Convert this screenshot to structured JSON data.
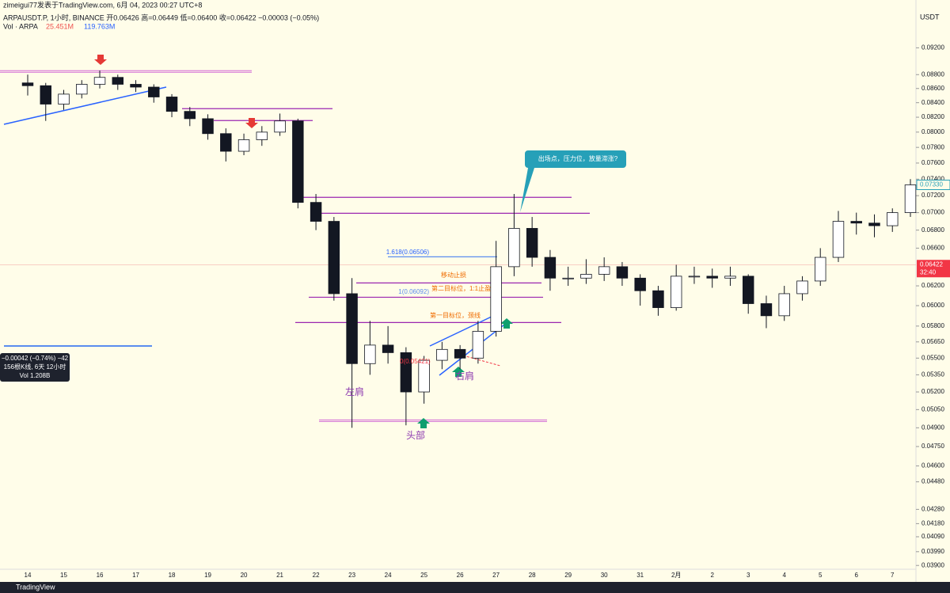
{
  "chart_data": {
    "type": "candlestick",
    "header": {
      "publisher": "zimeigui77发表于TradingView.com, 6月 04, 2023 00:27 UTC+8",
      "symbol_line": "ARPAUSDT.P, 1小时, BINANCE  开0.06426  高=0.06449  低=0.06400  收=0.06422  −0.00003 (−0.05%)",
      "volume_name": "Vol · ARPA",
      "volume_value": "25.451M",
      "volume_ma": "119.763M"
    },
    "axis_unit": "USDT",
    "log_scale": true,
    "grid": false,
    "ylim": [
      0.03795,
      0.09959
    ],
    "yticks": [
      {
        "value": 0.092,
        "label": "0.09200"
      },
      {
        "value": 0.088,
        "label": "0.08800"
      },
      {
        "value": 0.086,
        "label": "0.08600"
      },
      {
        "value": 0.084,
        "label": "0.08400"
      },
      {
        "value": 0.082,
        "label": "0.08200"
      },
      {
        "value": 0.08,
        "label": "0.08000"
      },
      {
        "value": 0.078,
        "label": "0.07800"
      },
      {
        "value": 0.076,
        "label": "0.07600"
      },
      {
        "value": 0.074,
        "label": "0.07400"
      },
      {
        "value": 0.072,
        "label": "0.07200"
      },
      {
        "value": 0.07,
        "label": "0.07000"
      },
      {
        "value": 0.068,
        "label": "0.06800"
      },
      {
        "value": 0.066,
        "label": "0.06600"
      },
      {
        "value": 0.062,
        "label": "0.06200"
      },
      {
        "value": 0.06,
        "label": "0.06000"
      },
      {
        "value": 0.058,
        "label": "0.05800"
      },
      {
        "value": 0.0565,
        "label": "0.05650"
      },
      {
        "value": 0.055,
        "label": "0.05500"
      },
      {
        "value": 0.0535,
        "label": "0.05350"
      },
      {
        "value": 0.052,
        "label": "0.05200"
      },
      {
        "value": 0.0505,
        "label": "0.05050"
      },
      {
        "value": 0.049,
        "label": "0.04900"
      },
      {
        "value": 0.0475,
        "label": "0.04750"
      },
      {
        "value": 0.046,
        "label": "0.04600"
      },
      {
        "value": 0.0448,
        "label": "0.04480"
      },
      {
        "value": 0.0428,
        "label": "0.04280"
      },
      {
        "value": 0.0418,
        "label": "0.04180"
      },
      {
        "value": 0.0409,
        "label": "0.04090"
      },
      {
        "value": 0.0399,
        "label": "0.03990"
      },
      {
        "value": 0.039,
        "label": "0.03900"
      }
    ],
    "categories": [
      "14",
      null,
      "15",
      null,
      "16",
      null,
      "17",
      null,
      "18",
      null,
      "19",
      null,
      "20",
      null,
      "21",
      null,
      "22",
      null,
      "23",
      null,
      "24",
      null,
      "25",
      null,
      "26",
      null,
      "27",
      null,
      "28",
      null,
      "29",
      null,
      "30",
      null,
      "31",
      null,
      "2月",
      null,
      "2",
      null,
      "3",
      null,
      "4",
      null,
      "5",
      null,
      "6",
      null,
      "7",
      null
    ],
    "open": [
      0.0868,
      0.0864,
      0.0838,
      0.0852,
      0.0866,
      0.0876,
      0.0866,
      0.0862,
      0.0848,
      0.0828,
      0.0818,
      0.0798,
      0.0775,
      0.079,
      0.08,
      0.0815,
      0.0712,
      0.069,
      0.0612,
      0.0545,
      0.0562,
      0.0555,
      0.052,
      0.0548,
      0.0558,
      0.055,
      0.0575,
      0.064,
      0.0682,
      0.065,
      0.0628,
      0.0628,
      0.0632,
      0.064,
      0.0628,
      0.0615,
      0.0598,
      0.063,
      0.063,
      0.0628,
      0.063,
      0.0602,
      0.059,
      0.0612,
      0.0625,
      0.065,
      0.069,
      0.0688,
      0.0685,
      0.07
    ],
    "high": [
      0.088,
      0.0868,
      0.0858,
      0.0872,
      0.0886,
      0.088,
      0.0872,
      0.0866,
      0.0852,
      0.0834,
      0.0824,
      0.0805,
      0.0798,
      0.0808,
      0.0825,
      0.0818,
      0.0722,
      0.0695,
      0.0628,
      0.0585,
      0.058,
      0.056,
      0.0552,
      0.0565,
      0.0562,
      0.0585,
      0.0668,
      0.0722,
      0.0695,
      0.0658,
      0.064,
      0.0648,
      0.065,
      0.0645,
      0.0632,
      0.062,
      0.0642,
      0.064,
      0.0638,
      0.064,
      0.0632,
      0.061,
      0.062,
      0.063,
      0.066,
      0.0702,
      0.07,
      0.0698,
      0.0705,
      0.074
    ],
    "low": [
      0.085,
      0.0815,
      0.083,
      0.0846,
      0.086,
      0.0858,
      0.0855,
      0.084,
      0.082,
      0.0808,
      0.079,
      0.0762,
      0.077,
      0.0782,
      0.0795,
      0.0705,
      0.068,
      0.0605,
      0.049,
      0.0535,
      0.0545,
      0.0492,
      0.051,
      0.054,
      0.054,
      0.0545,
      0.057,
      0.063,
      0.064,
      0.0615,
      0.062,
      0.0622,
      0.0625,
      0.062,
      0.06,
      0.059,
      0.0595,
      0.0622,
      0.0618,
      0.062,
      0.0592,
      0.0578,
      0.0585,
      0.0605,
      0.062,
      0.0645,
      0.0675,
      0.0672,
      0.0678,
      0.0695
    ],
    "close": [
      0.0864,
      0.0838,
      0.0852,
      0.0866,
      0.0876,
      0.0866,
      0.0862,
      0.0848,
      0.0828,
      0.0818,
      0.0798,
      0.0775,
      0.079,
      0.08,
      0.0815,
      0.0712,
      0.069,
      0.0612,
      0.0545,
      0.0562,
      0.0555,
      0.052,
      0.0548,
      0.0558,
      0.055,
      0.0575,
      0.064,
      0.0682,
      0.065,
      0.0628,
      0.0628,
      0.0632,
      0.064,
      0.0628,
      0.0615,
      0.0598,
      0.063,
      0.063,
      0.0628,
      0.063,
      0.0602,
      0.059,
      0.0612,
      0.0625,
      0.065,
      0.069,
      0.0688,
      0.0685,
      0.07,
      0.0733
    ],
    "up_color": "#ffffff",
    "down_color": "#131722",
    "levels": [
      {
        "price": 0.08846,
        "color": "#d36bd6"
      },
      {
        "price": 0.08317,
        "color": "#9c27b0"
      },
      {
        "price": 0.08155,
        "color": "#9c27b0"
      },
      {
        "price": 0.0718,
        "color": "#9c27b0"
      },
      {
        "price": 0.06993,
        "color": "#9c27b0"
      },
      {
        "price": 0.06506,
        "color": "#5b8def"
      },
      {
        "price": 0.0623,
        "color": "#9c27b0"
      },
      {
        "price": 0.06084,
        "color": "#9c27b0"
      },
      {
        "price": 0.05834,
        "color": "#9c27b0"
      },
      {
        "price": 0.04958,
        "color": "#d36bd6"
      }
    ],
    "annotations": [
      "1.618(0.06506)",
      "移动止损",
      "1(0.06092)",
      "第二目标位，1:1止盈",
      "第一目标位，颈线",
      "0(0.05421)",
      "左肩",
      "头部",
      "右肩",
      "出场点，压力位，放量滞涨?"
    ],
    "last_price": {
      "value": 0.0733,
      "label": "0.07330"
    },
    "current_price": {
      "value": 0.06422,
      "label": "0.06422"
    },
    "countdown": "32:40",
    "measure": [
      "−0.00042 (−0.74%) −42",
      "156根K线, 6天 12小时",
      "Vol 1.208B"
    ],
    "brand": "TradingView"
  }
}
